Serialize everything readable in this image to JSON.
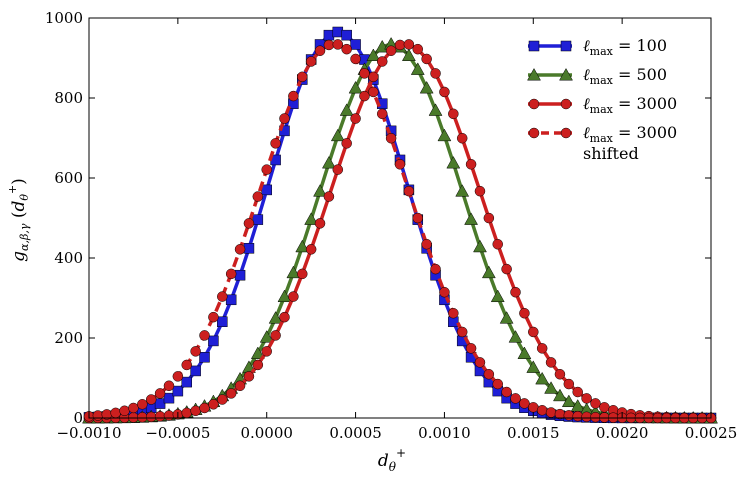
{
  "chart_data": {
    "type": "line",
    "title": "",
    "xlabel": "d_θ^+",
    "ylabel": "g_{α,β,γ} (d_θ^+)",
    "xlim": [
      -0.001,
      0.0025
    ],
    "ylim": [
      0,
      1000
    ],
    "x_ticks": [
      -0.001,
      -0.0005,
      0.0,
      0.0005,
      0.001,
      0.0015,
      0.002,
      0.0025
    ],
    "x_tick_labels": [
      "−0.0010",
      "−0.0005",
      "0.0000",
      "0.0005",
      "0.0010",
      "0.0015",
      "0.0020",
      "0.0025"
    ],
    "y_ticks": [
      0,
      200,
      400,
      600,
      800,
      1000
    ],
    "y_tick_labels": [
      "0",
      "200",
      "400",
      "600",
      "800",
      "1000"
    ],
    "grid": false,
    "legend_position": "top-right",
    "series": [
      {
        "name": "ℓmax = 100",
        "legend_main": "ℓ",
        "legend_sub": "max",
        "legend_rest": " = 100",
        "color": "#1f1fd6",
        "marker": "square",
        "line": "solid",
        "peak_x": 0.0004,
        "peak_y": 965,
        "sigma": 0.00039
      },
      {
        "name": "ℓmax = 500",
        "legend_main": "ℓ",
        "legend_sub": "max",
        "legend_rest": " = 500",
        "color": "#4a7a2a",
        "marker": "triangle",
        "line": "solid",
        "peak_x": 0.0007,
        "peak_y": 935,
        "sigma": 0.0004
      },
      {
        "name": "ℓmax = 3000",
        "legend_main": "ℓ",
        "legend_sub": "max",
        "legend_rest": " = 3000",
        "color": "#cc1f1f",
        "marker": "circle",
        "line": "solid",
        "peak_x": 0.00078,
        "peak_y": 935,
        "sigma": 0.00042
      },
      {
        "name": "ℓmax = 3000 shifted",
        "legend_main": "ℓ",
        "legend_sub": "max",
        "legend_rest": " = 3000",
        "legend_line2": "shifted",
        "color": "#cc1f1f",
        "marker": "circle",
        "line": "dashed",
        "peak_x": 0.00038,
        "peak_y": 935,
        "sigma": 0.00042
      }
    ]
  },
  "colors": {
    "background": "#ffffff",
    "axis": "#000000"
  }
}
